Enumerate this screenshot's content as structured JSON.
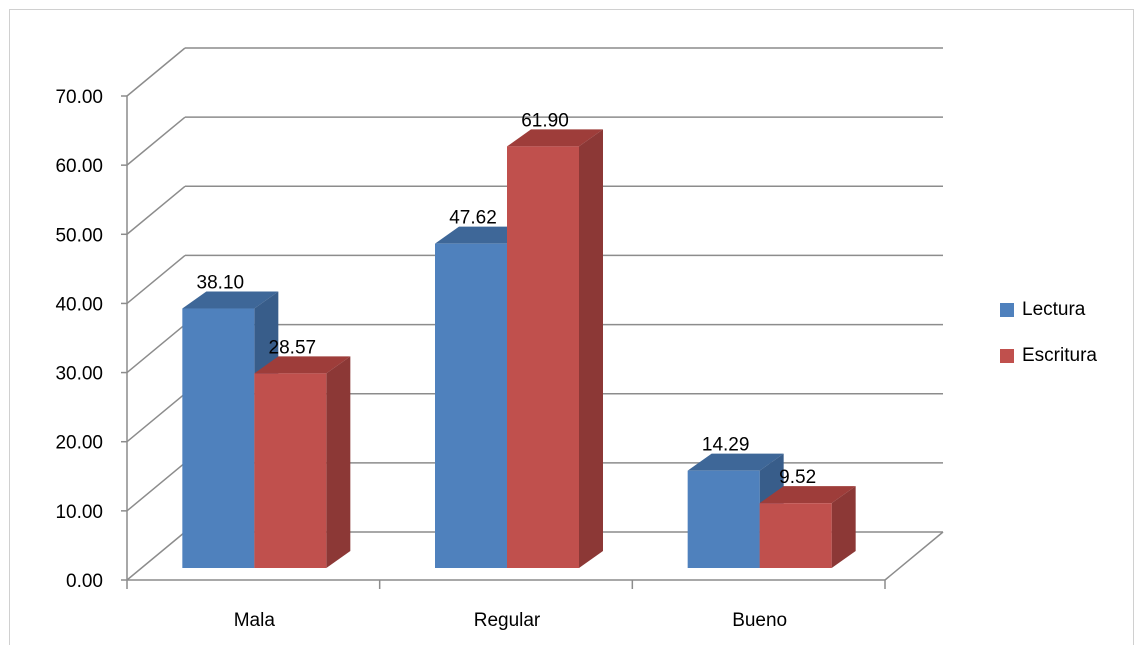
{
  "colors": {
    "lectura": "#4F81BD",
    "lectura_top": "#3E6798",
    "lectura_side": "#385D8A",
    "escritura": "#C0504D",
    "escritura_top": "#9E3D3A",
    "escritura_side": "#8C3836",
    "grid": "#8C8C8C"
  },
  "chart_data": {
    "type": "bar",
    "title": "",
    "xlabel": "",
    "ylabel": "",
    "ylim": [
      0,
      70
    ],
    "yticks": [
      "0.00",
      "10.00",
      "20.00",
      "30.00",
      "40.00",
      "50.00",
      "60.00",
      "70.00"
    ],
    "categories": [
      "Mala",
      "Regular",
      "Bueno"
    ],
    "series": [
      {
        "name": "Lectura",
        "values": [
          38.1,
          47.62,
          14.29
        ],
        "labels": [
          "38.10",
          "47.62",
          "14.29"
        ]
      },
      {
        "name": "Escritura",
        "values": [
          28.57,
          61.9,
          9.52
        ],
        "labels": [
          "28.57",
          "61.90",
          "9.52"
        ]
      }
    ],
    "grid": true,
    "legend_position": "right",
    "style": "3d-clustered-column"
  }
}
